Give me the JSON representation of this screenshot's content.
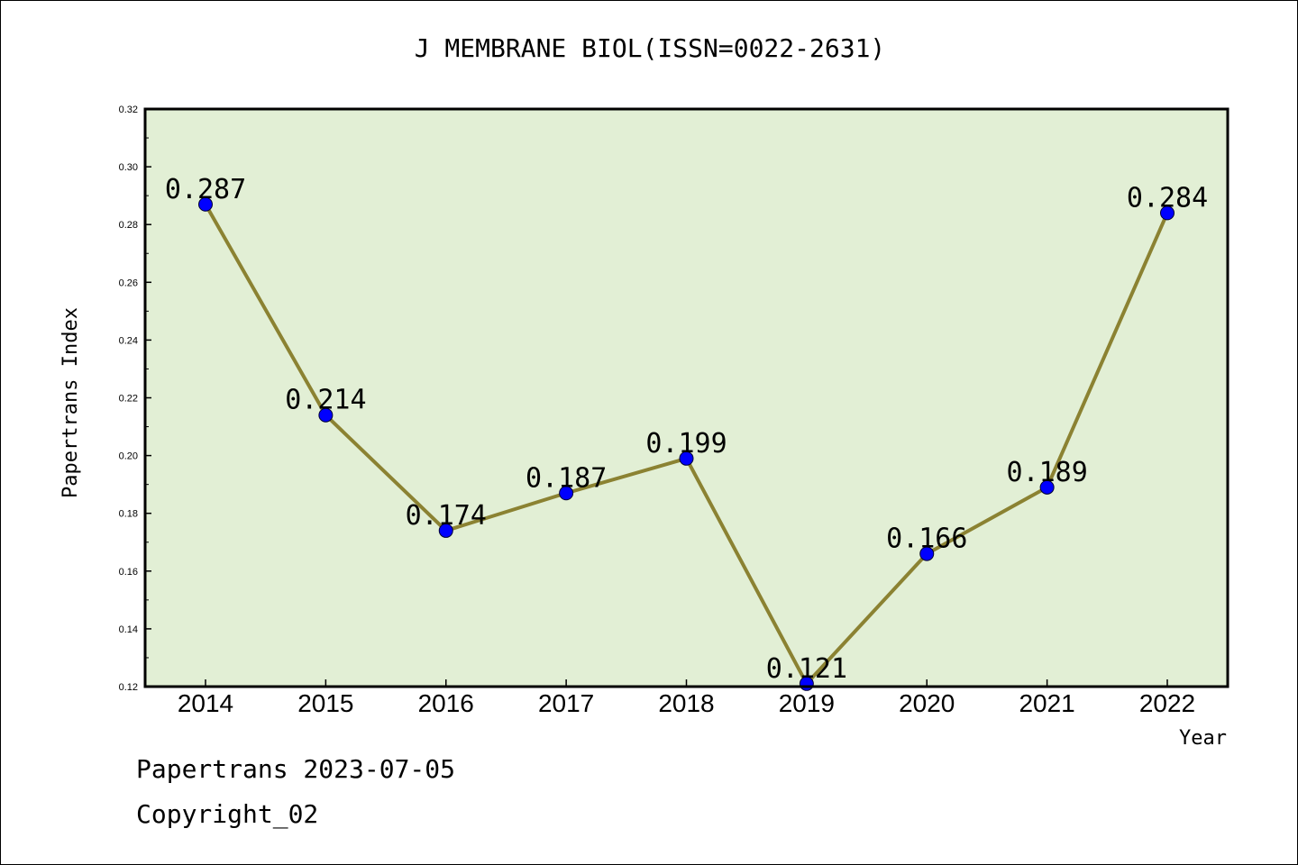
{
  "chart_data": {
    "type": "line",
    "title": "J MEMBRANE BIOL(ISSN=0022-2631)",
    "xlabel": "Year",
    "ylabel": "Papertrans Index",
    "categories": [
      "2014",
      "2015",
      "2016",
      "2017",
      "2018",
      "2019",
      "2020",
      "2021",
      "2022"
    ],
    "values": [
      0.287,
      0.214,
      0.174,
      0.187,
      0.199,
      0.121,
      0.166,
      0.189,
      0.284
    ],
    "data_labels": [
      "0.287",
      "0.214",
      "0.174",
      "0.187",
      "0.199",
      "0.121",
      "0.166",
      "0.189",
      "0.284"
    ],
    "ylim": [
      0.12,
      0.32
    ],
    "yticks": [
      "0.12",
      "0.14",
      "0.16",
      "0.18",
      "0.20",
      "0.22",
      "0.24",
      "0.26",
      "0.28",
      "0.30",
      "0.32"
    ],
    "grid": false,
    "colors": {
      "plot_background": "#e2efd5",
      "line": "#8b8232",
      "marker": "#0000ff"
    }
  },
  "footer": {
    "date_line": "Papertrans 2023-07-05",
    "copyright_line": "Copyright_02"
  }
}
